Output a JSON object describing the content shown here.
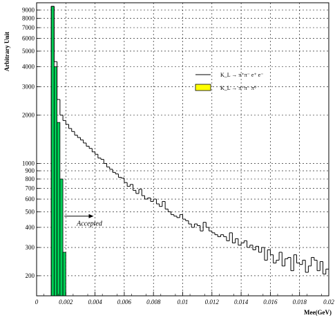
{
  "chart_data": {
    "type": "histogram",
    "title": "",
    "xlabel": "Mee(GeV)",
    "ylabel": "Arbitrary Unit",
    "xlim": [
      0,
      0.02
    ],
    "ylim": [
      150,
      10000
    ],
    "yscale": "log",
    "grid": true,
    "legend_position": "top-right",
    "x_ticks": [
      "0",
      "0.002",
      "0.004",
      "0.006",
      "0.008",
      "0.01",
      "0.012",
      "0.014",
      "0.016",
      "0.018",
      "0.02"
    ],
    "y_ticks": [
      "200",
      "300",
      "400",
      "500",
      "600",
      "700",
      "800",
      "900",
      "1000",
      "2000",
      "3000",
      "4000",
      "5000",
      "6000",
      "7000",
      "8000",
      "9000"
    ],
    "bin_width": 0.0002,
    "series": [
      {
        "name": "K_L → π⁺π⁻ e⁺ e⁻",
        "style": "step",
        "color": "#000000",
        "x": [
          0.0011,
          0.0013,
          0.0015,
          0.0017,
          0.0019,
          0.0021,
          0.0023,
          0.0025,
          0.0027,
          0.0029,
          0.0031,
          0.0033,
          0.0035,
          0.0037,
          0.0039,
          0.0041,
          0.0043,
          0.0045,
          0.0047,
          0.0049,
          0.0051,
          0.0053,
          0.0055,
          0.0057,
          0.0059,
          0.0061,
          0.0063,
          0.0065,
          0.0067,
          0.0069,
          0.0071,
          0.0073,
          0.0075,
          0.0077,
          0.0079,
          0.0081,
          0.0083,
          0.0085,
          0.0087,
          0.0089,
          0.0091,
          0.0093,
          0.0095,
          0.0097,
          0.0099,
          0.0101,
          0.0103,
          0.0105,
          0.0107,
          0.0109,
          0.0111,
          0.0113,
          0.0115,
          0.0117,
          0.0119,
          0.0121,
          0.0123,
          0.0125,
          0.0127,
          0.0129,
          0.0131,
          0.0133,
          0.0135,
          0.0137,
          0.0139,
          0.0141,
          0.0143,
          0.0145,
          0.0147,
          0.0149,
          0.0151,
          0.0153,
          0.0155,
          0.0157,
          0.0159,
          0.0161,
          0.0163,
          0.0165,
          0.0167,
          0.0169,
          0.0171,
          0.0173,
          0.0175,
          0.0177,
          0.0179,
          0.0181,
          0.0183,
          0.0185,
          0.0187,
          0.0189,
          0.0191,
          0.0193,
          0.0195,
          0.0197,
          0.0199
        ],
        "values": [
          9500,
          4300,
          2500,
          2000,
          1850,
          1750,
          1650,
          1580,
          1500,
          1450,
          1400,
          1340,
          1280,
          1240,
          1180,
          1140,
          1080,
          1060,
          1000,
          950,
          920,
          880,
          860,
          820,
          810,
          760,
          720,
          740,
          680,
          650,
          690,
          630,
          600,
          610,
          580,
          600,
          560,
          540,
          580,
          520,
          500,
          480,
          470,
          460,
          480,
          450,
          440,
          420,
          400,
          420,
          410,
          380,
          430,
          400,
          380,
          370,
          360,
          350,
          360,
          350,
          330,
          370,
          320,
          340,
          310,
          320,
          330,
          300,
          310,
          290,
          305,
          280,
          300,
          250,
          290,
          270,
          240,
          250,
          280,
          230,
          255,
          260,
          215,
          270,
          240,
          235,
          250,
          210,
          230,
          260,
          250,
          215,
          245,
          205,
          220
        ]
      },
      {
        "name": "K_L → π⁺π⁻ π⁰",
        "style": "filled",
        "color": "#00cc55",
        "legend_color": "#ffff00",
        "x": [
          0.0011,
          0.0013,
          0.0015,
          0.0017,
          0.0019
        ],
        "values": [
          9500,
          4000,
          1800,
          800,
          280
        ]
      }
    ],
    "annotations": [
      {
        "text": "Accepted",
        "arrow_from_x": 0.0019,
        "arrow_to_x": 0.0039,
        "y": 470
      }
    ]
  }
}
